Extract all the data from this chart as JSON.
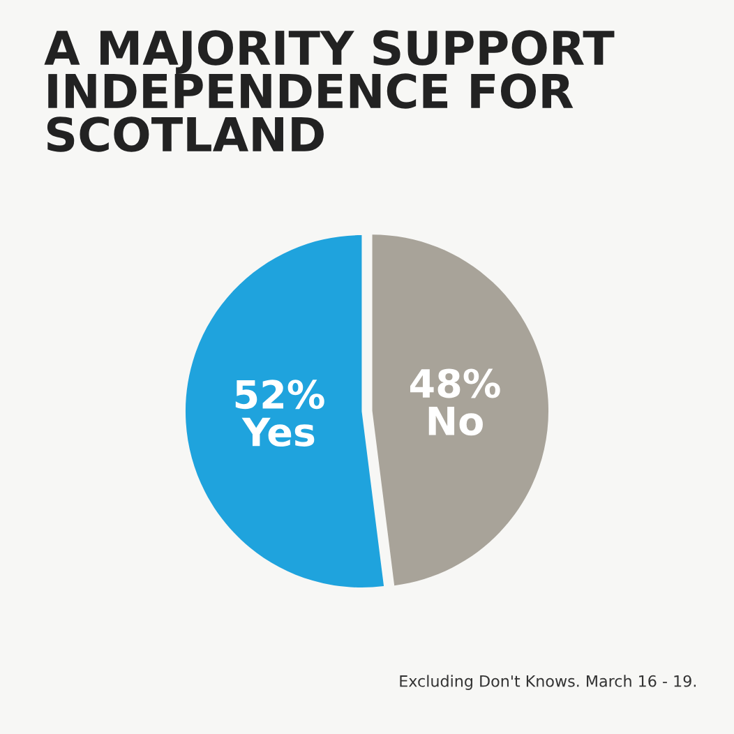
{
  "chart_data": {
    "type": "pie",
    "title": "A MAJORITY SUPPORT\nINDEPENDENCE FOR\nSCOTLAND",
    "categories": [
      "Yes",
      "No"
    ],
    "values": [
      52,
      48
    ],
    "colors": [
      "#1fa3dd",
      "#a8a399"
    ],
    "value_labels": [
      "52%",
      "48%"
    ],
    "annotations": [
      "Excluding Don't Knows. March 16 - 19."
    ]
  }
}
